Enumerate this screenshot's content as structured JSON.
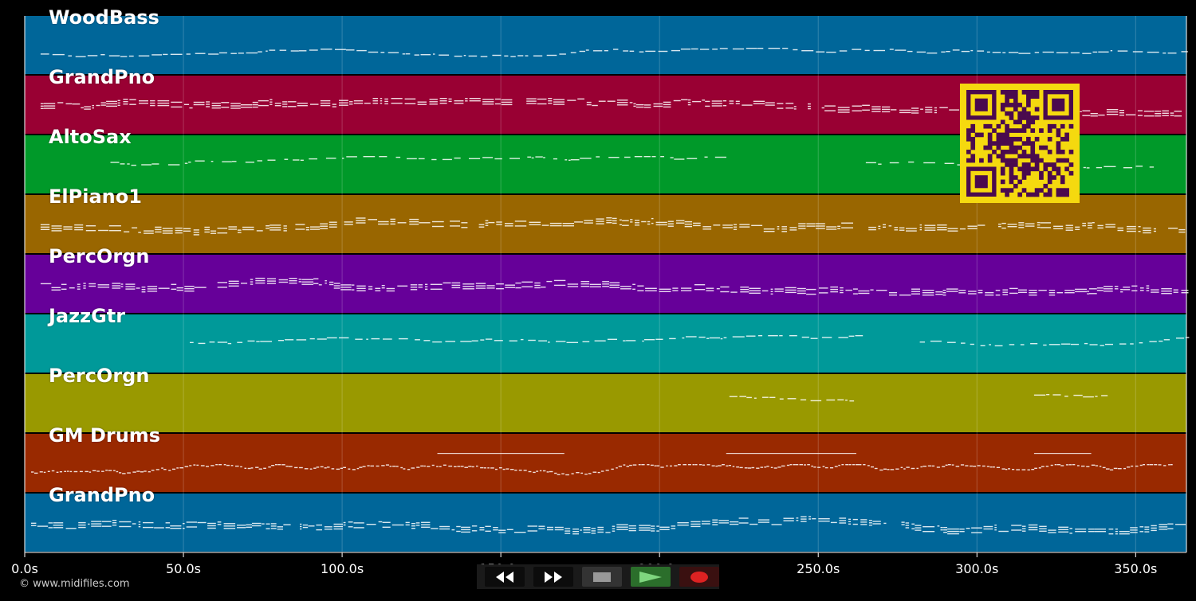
{
  "tracks": [
    {
      "name": "WoodBass",
      "color": "#006699",
      "pattern": "bass"
    },
    {
      "name": "GrandPno",
      "color": "#990033",
      "pattern": "piano"
    },
    {
      "name": "AltoSax",
      "color": "#009929",
      "pattern": "sax"
    },
    {
      "name": "ElPiano1",
      "color": "#996600",
      "pattern": "epiano"
    },
    {
      "name": "PercOrgn",
      "color": "#660099",
      "pattern": "organ"
    },
    {
      "name": "JazzGtr",
      "color": "#009999",
      "pattern": "guitar"
    },
    {
      "name": "PercOrgn",
      "color": "#999900",
      "pattern": "organ2"
    },
    {
      "name": "GM Drums",
      "color": "#992900",
      "pattern": "drums"
    },
    {
      "name": "GrandPno",
      "color": "#006699",
      "pattern": "piano2"
    }
  ],
  "time_axis": {
    "unit": "s",
    "max": 366,
    "ticks": [
      "0.0s",
      "50.0s",
      "100.0s",
      "150.0s",
      "200.0s",
      "250.0s",
      "300.0s",
      "350.0s"
    ],
    "tick_values": [
      0,
      50,
      100,
      150,
      200,
      250,
      300,
      350
    ]
  },
  "transport": {
    "rewind": "rewind-icon",
    "fast_forward": "fast-forward-icon",
    "stop": "stop-icon",
    "play": "play-icon",
    "record": "record-icon"
  },
  "qr_code": {
    "colors": {
      "bg": "#f5d90f",
      "fg": "#4a0a4e"
    }
  },
  "copyright": "© www.midifiles.com"
}
